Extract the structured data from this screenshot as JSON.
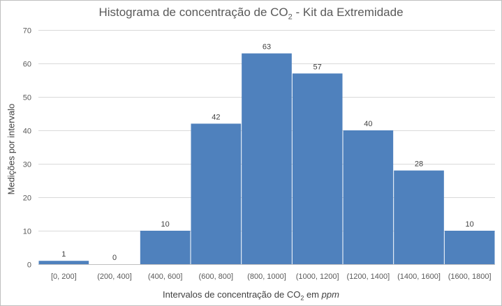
{
  "chart_data": {
    "type": "bar",
    "title": {
      "text": "Histograma de concentração de CO",
      "sub": "2",
      "suffix": " - Kit da Extremidade"
    },
    "ylabel": "Medições por intervalo",
    "xlabel": {
      "text": "Intervalos de concentração de CO",
      "sub": "2",
      "middle": " em ",
      "unit": "ppm"
    },
    "categories": [
      "[0, 200]",
      "(200, 400]",
      "(400, 600]",
      "(600, 800]",
      "(800, 1000]",
      "(1000, 1200]",
      "(1200, 1400]",
      "(1400, 1600]",
      "(1600, 1800]"
    ],
    "values": [
      1,
      0,
      10,
      42,
      63,
      57,
      40,
      28,
      10
    ],
    "ylim": [
      0,
      70
    ],
    "yticks": [
      0,
      10,
      20,
      30,
      40,
      50,
      60,
      70
    ],
    "grid": true,
    "legend": "none",
    "bar_color": "#4f81bd",
    "grid_color": "#d9d9d9"
  }
}
